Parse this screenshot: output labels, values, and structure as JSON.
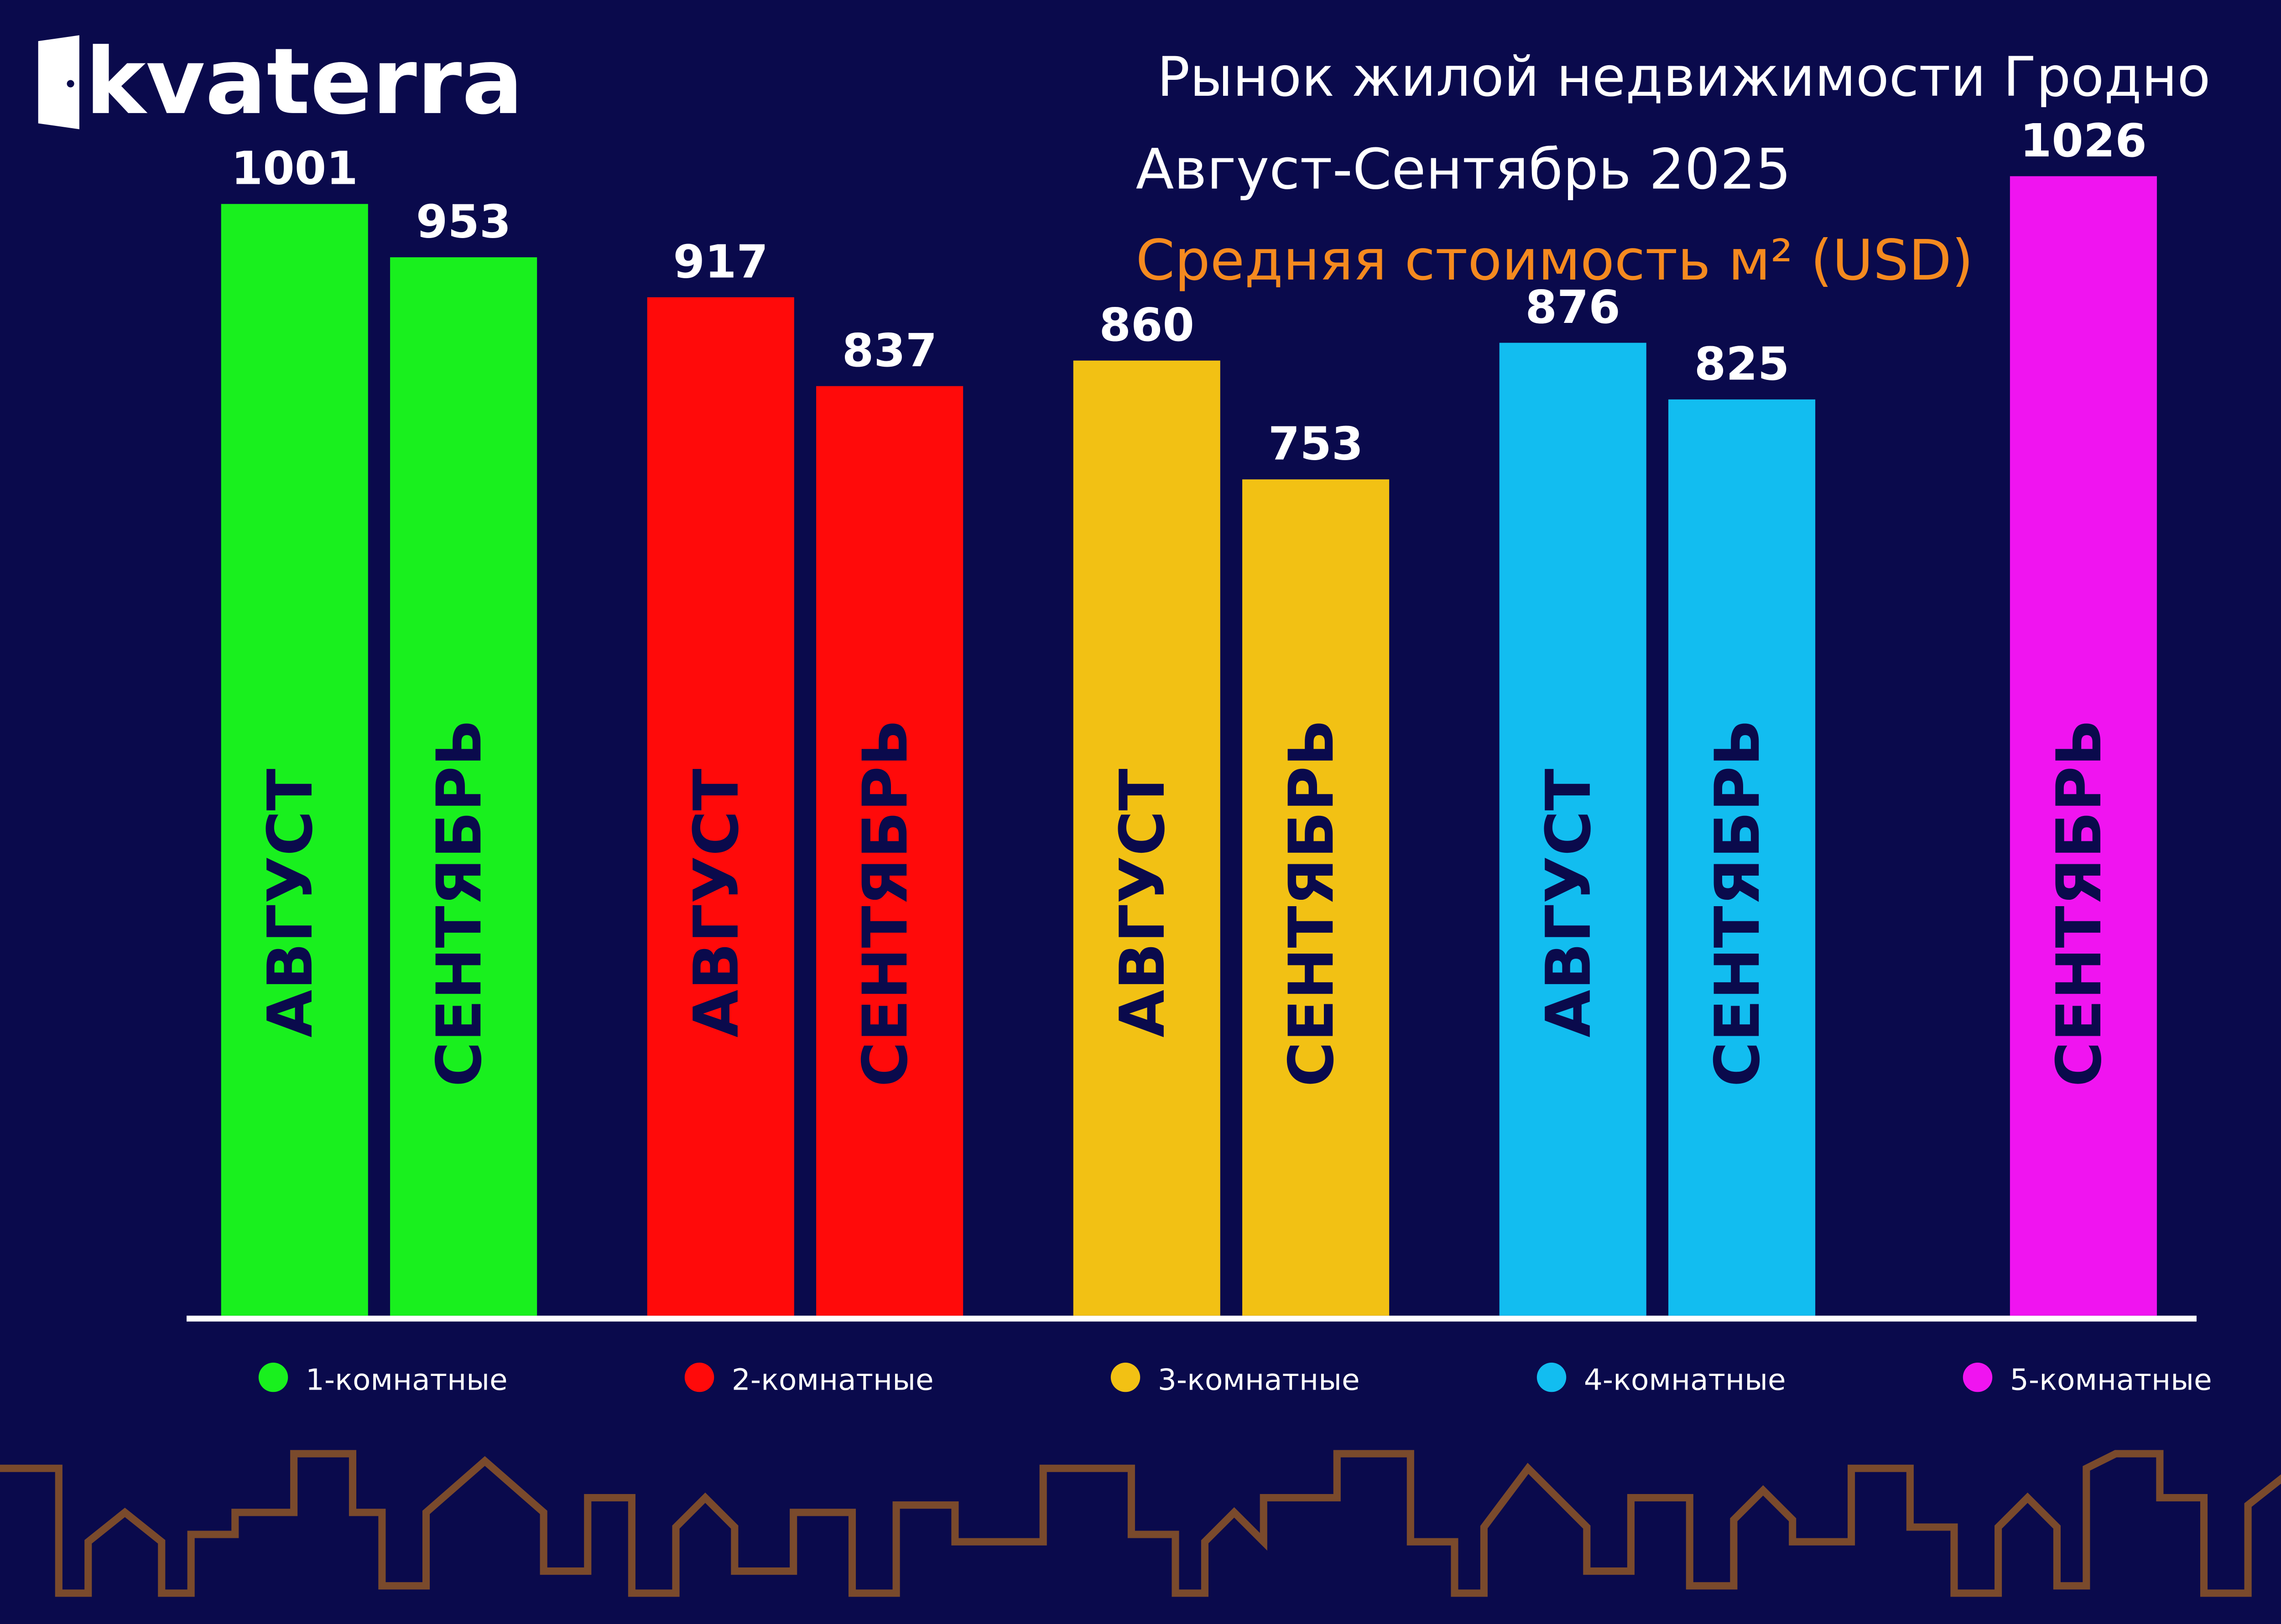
{
  "chart_data": {
    "type": "bar",
    "logo": "kvaterra",
    "title": "Рынок жилой недвижимости Гродно",
    "subtitle": "Август-Сентябрь 2025",
    "y_axis_label": "Средняя стоимость м² (USD)",
    "categories": [
      "1-комнатные",
      "2-комнатные",
      "3-комнатные",
      "4-комнатные",
      "5-комнатные"
    ],
    "colors": [
      "#19f01e",
      "#ff0a0a",
      "#f2c114",
      "#12bdf0",
      "#f014f0"
    ],
    "series": [
      {
        "name": "АВГУСТ",
        "values": [
          1001,
          917,
          860,
          876,
          null
        ]
      },
      {
        "name": "СЕНТЯБРЬ",
        "values": [
          953,
          837,
          753,
          825,
          1026
        ]
      }
    ]
  }
}
